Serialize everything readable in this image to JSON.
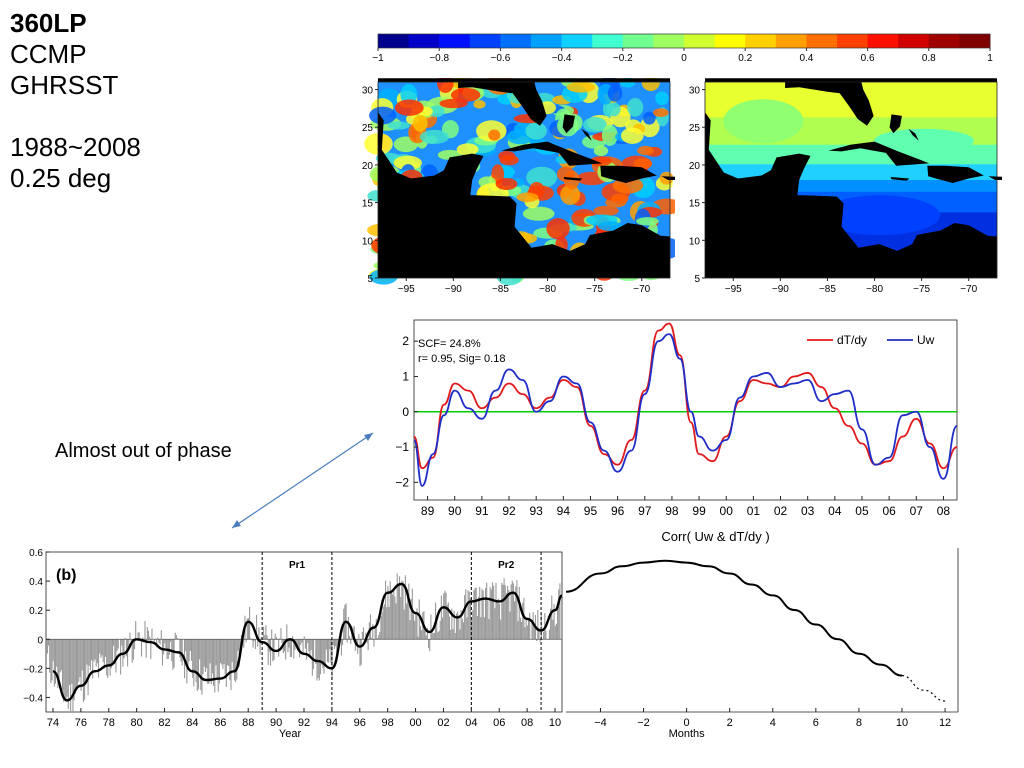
{
  "slide": {
    "title": "360LP",
    "lines": [
      "CCMP",
      "GHRSST",
      "",
      "1988~2008",
      "0.25 deg"
    ],
    "annotation": "Almost out of phase"
  },
  "colorbar": {
    "ticks": [
      "−1",
      "−0.8",
      "−0.6",
      "−0.4",
      "−0.2",
      "0",
      "0.2",
      "0.4",
      "0.6",
      "0.8",
      "1"
    ],
    "colors": [
      "#00008f",
      "#0000c8",
      "#0010ff",
      "#0040ff",
      "#0070ff",
      "#00a0ff",
      "#10d0ff",
      "#40ffd0",
      "#70ff90",
      "#a0ff60",
      "#d0ff30",
      "#ffff00",
      "#ffd000",
      "#ffa000",
      "#ff7000",
      "#ff4000",
      "#ff1000",
      "#d00000",
      "#a00000",
      "#800000"
    ]
  },
  "chart_data": [
    {
      "type": "heatmap",
      "label": "dT/dy",
      "x_ticks": [
        "−95",
        "−90",
        "−85",
        "−80",
        "−75",
        "−70"
      ],
      "y_ticks": [
        "30",
        "25",
        "20",
        "15",
        "10",
        "5"
      ],
      "xlim": [
        -98,
        -67
      ],
      "ylim": [
        5,
        31
      ]
    },
    {
      "type": "heatmap",
      "label": "Uw",
      "x_ticks": [
        "−95",
        "−90",
        "−85",
        "−80",
        "−75",
        "−70"
      ],
      "y_ticks": [
        "30",
        "25",
        "20",
        "15",
        "10",
        "5"
      ],
      "xlim": [
        -98,
        -67
      ],
      "ylim": [
        5,
        31
      ]
    },
    {
      "type": "line",
      "title": "",
      "stats": [
        "SCF= 24.8%",
        "r= 0.95, Sig= 0.18"
      ],
      "x_ticks": [
        "89",
        "90",
        "91",
        "92",
        "93",
        "94",
        "95",
        "96",
        "97",
        "98",
        "99",
        "00",
        "01",
        "02",
        "03",
        "04",
        "05",
        "06",
        "07",
        "08"
      ],
      "y_ticks": [
        "2",
        "1",
        "0",
        "−1",
        "−2"
      ],
      "xlim": [
        1988.5,
        2008.5
      ],
      "ylim": [
        -2.5,
        2.6
      ],
      "series": [
        {
          "name": "dT/dy",
          "color": "#e31a1c",
          "x": [
            1988.5,
            1988.8,
            1989.2,
            1989.6,
            1990.0,
            1990.5,
            1991.0,
            1991.5,
            1992.0,
            1992.5,
            1993.0,
            1993.5,
            1994.0,
            1994.5,
            1995.0,
            1995.5,
            1996.0,
            1996.5,
            1997.0,
            1997.5,
            1997.9,
            1998.3,
            1998.7,
            1999.0,
            1999.5,
            2000.0,
            2000.5,
            2001.0,
            2001.5,
            2002.0,
            2002.5,
            2003.0,
            2003.5,
            2004.0,
            2004.5,
            2005.0,
            2005.5,
            2006.0,
            2006.5,
            2007.0,
            2007.5,
            2008.0,
            2008.5
          ],
          "y": [
            -0.7,
            -1.6,
            -1.3,
            0.2,
            0.8,
            0.6,
            0.1,
            0.4,
            0.8,
            0.5,
            0.1,
            0.4,
            0.9,
            0.7,
            -0.4,
            -1.2,
            -1.5,
            -0.8,
            0.6,
            2.3,
            2.5,
            1.6,
            -0.3,
            -1.2,
            -1.4,
            -0.7,
            0.3,
            0.9,
            0.8,
            0.7,
            1.0,
            1.1,
            0.7,
            0.1,
            -0.4,
            -0.9,
            -1.5,
            -1.4,
            -0.7,
            -0.2,
            -0.9,
            -1.6,
            -1.0
          ]
        },
        {
          "name": "Uw",
          "color": "#1f2ec8",
          "x": [
            1988.5,
            1988.8,
            1989.2,
            1989.6,
            1990.0,
            1990.5,
            1991.0,
            1991.5,
            1992.0,
            1992.5,
            1993.0,
            1993.5,
            1994.0,
            1994.5,
            1995.0,
            1995.5,
            1996.0,
            1996.5,
            1997.0,
            1997.5,
            1997.9,
            1998.3,
            1998.7,
            1999.0,
            1999.5,
            2000.0,
            2000.5,
            2001.0,
            2001.5,
            2002.0,
            2002.5,
            2003.0,
            2003.5,
            2004.0,
            2004.5,
            2005.0,
            2005.5,
            2006.0,
            2006.5,
            2007.0,
            2007.5,
            2008.0,
            2008.5
          ],
          "y": [
            -0.8,
            -2.1,
            -1.2,
            -0.1,
            0.6,
            0.1,
            -0.2,
            0.6,
            1.2,
            0.9,
            0.0,
            0.3,
            1.0,
            0.8,
            -0.3,
            -1.1,
            -1.7,
            -1.1,
            0.5,
            2.0,
            2.2,
            1.5,
            0.0,
            -0.7,
            -1.1,
            -0.8,
            0.4,
            1.0,
            1.1,
            0.7,
            0.8,
            0.9,
            0.3,
            0.5,
            0.6,
            -0.5,
            -1.5,
            -1.3,
            -0.1,
            0.0,
            -1.0,
            -1.9,
            -0.4
          ]
        }
      ],
      "zero_line_color": "#00cc00",
      "legend": "top-right",
      "caption": "Corr( Uw & dT/dy )"
    },
    {
      "type": "bar",
      "panel_label": "(b)",
      "xlabel": "Year",
      "x_ticks": [
        "74",
        "76",
        "78",
        "80",
        "82",
        "84",
        "86",
        "88",
        "90",
        "92",
        "94",
        "96",
        "98",
        "00",
        "02",
        "04",
        "06",
        "08",
        "10"
      ],
      "y_ticks": [
        "0.6",
        "0.4",
        "0.2",
        "0",
        "−0.2",
        "−0.4"
      ],
      "xlim": [
        1973.5,
        2010.5
      ],
      "ylim": [
        -0.5,
        0.6
      ],
      "period_labels": [
        "Pr1",
        "Pr2"
      ],
      "periods": [
        [
          1989,
          1994
        ],
        [
          2004,
          2009
        ]
      ],
      "smooth": {
        "x": [
          1974,
          1975,
          1976,
          1977,
          1978,
          1979,
          1980,
          1981,
          1982,
          1983,
          1984,
          1985,
          1986,
          1987,
          1988,
          1989,
          1990,
          1991,
          1992,
          1993,
          1994,
          1995,
          1996,
          1997,
          1998,
          1999,
          2000,
          2001,
          2002,
          2003,
          2004,
          2005,
          2006,
          2007,
          2008,
          2009,
          2010,
          2010.5
        ],
        "y": [
          -0.22,
          -0.42,
          -0.32,
          -0.22,
          -0.18,
          -0.1,
          0.0,
          -0.02,
          -0.07,
          -0.09,
          -0.22,
          -0.28,
          -0.27,
          -0.22,
          0.12,
          -0.02,
          -0.08,
          0.0,
          -0.1,
          -0.15,
          -0.2,
          0.12,
          -0.05,
          0.08,
          0.32,
          0.38,
          0.18,
          0.05,
          0.22,
          0.15,
          0.26,
          0.28,
          0.26,
          0.32,
          0.14,
          0.06,
          0.2,
          0.3
        ]
      }
    },
    {
      "type": "line",
      "xlabel": "Months",
      "x_ticks": [
        "−4",
        "−2",
        "0",
        "2",
        "4",
        "6",
        "8",
        "10",
        "12"
      ],
      "xlim": [
        -5.6,
        12.6
      ],
      "ylim": [
        0.15,
        0.6
      ],
      "solid": {
        "x": [
          -5.6,
          -4,
          -3,
          -2,
          -1,
          0,
          1,
          2,
          3,
          4,
          5,
          6,
          7,
          8,
          9,
          10
        ],
        "y": [
          0.48,
          0.53,
          0.55,
          0.56,
          0.565,
          0.56,
          0.55,
          0.53,
          0.5,
          0.47,
          0.43,
          0.39,
          0.35,
          0.31,
          0.28,
          0.25
        ]
      },
      "dotted": {
        "x": [
          10,
          11,
          12
        ],
        "y": [
          0.25,
          0.21,
          0.18
        ]
      }
    }
  ]
}
